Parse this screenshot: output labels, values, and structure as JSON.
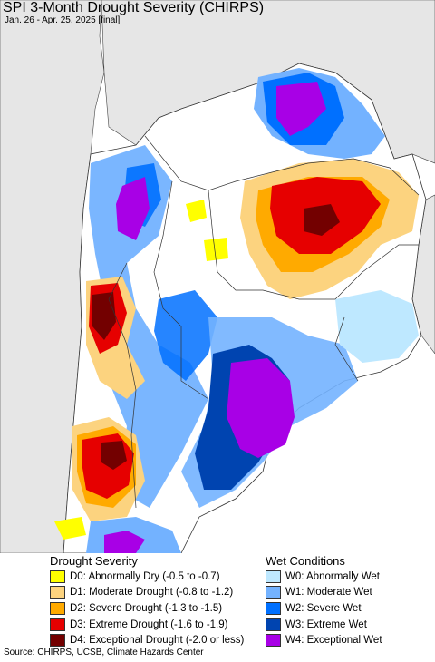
{
  "map": {
    "title": "SPI 3-Month Drought Severity (CHIRPS)",
    "subtitle": "Jan. 26 - Apr. 25, 2025 [final]"
  },
  "legend": {
    "drought": {
      "heading": "Drought Severity",
      "items": [
        {
          "label": "D0: Abnormally Dry (-0.5 to -0.7)",
          "color": "#ffff00"
        },
        {
          "label": "D1: Moderate Drought (-0.8 to -1.2)",
          "color": "#fcd37f"
        },
        {
          "label": "D2: Severe Drought (-1.3 to -1.5)",
          "color": "#ffaa00"
        },
        {
          "label": "D3: Extreme Drought (-1.6 to -1.9)",
          "color": "#e60000"
        },
        {
          "label": "D4: Exceptional Drought (-2.0 or less)",
          "color": "#730000"
        }
      ]
    },
    "wet": {
      "heading": "Wet Conditions",
      "items": [
        {
          "label": "W0: Abnormally Wet",
          "color": "#bee8ff"
        },
        {
          "label": "W1: Moderate Wet",
          "color": "#73b2ff"
        },
        {
          "label": "W2: Severe Wet",
          "color": "#0070ff"
        },
        {
          "label": "W3: Extreme Wet",
          "color": "#0044b0"
        },
        {
          "label": "W4: Exceptional Wet",
          "color": "#a800e6"
        }
      ]
    }
  },
  "source": "Source: CHIRPS, UCSB, Climate Hazards Center",
  "colors": {
    "ocean": "#ffffff",
    "outside_land": "#e6e6e6",
    "normal": "#ffffff",
    "border": "#333333"
  }
}
